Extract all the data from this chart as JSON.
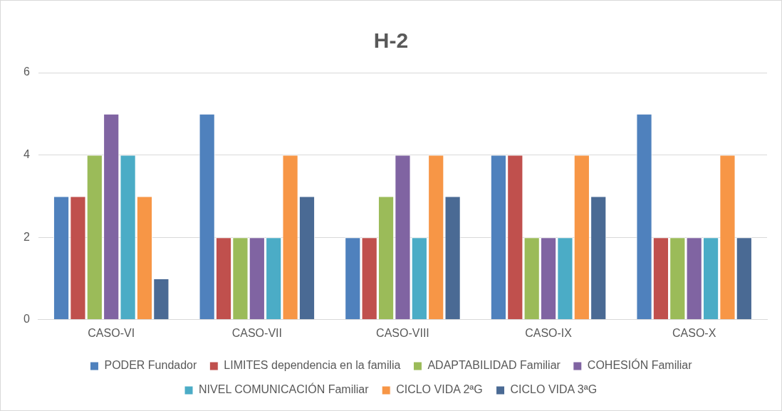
{
  "chart_data": {
    "type": "bar",
    "title": "H-2",
    "categories": [
      "CASO-VI",
      "CASO-VII",
      "CASO-VIII",
      "CASO-IX",
      "CASO-X"
    ],
    "series": [
      {
        "name": "PODER Fundador",
        "color": "#4f81bd",
        "values": [
          3,
          5,
          2,
          4,
          5
        ]
      },
      {
        "name": "LIMITES dependencia en la familia",
        "color": "#c0504d",
        "values": [
          3,
          2,
          2,
          4,
          2
        ]
      },
      {
        "name": "ADAPTABILIDAD Familiar",
        "color": "#9bbb59",
        "values": [
          4,
          2,
          3,
          2,
          2
        ]
      },
      {
        "name": "COHESIÓN Familiar",
        "color": "#8064a2",
        "values": [
          5,
          2,
          4,
          2,
          2
        ]
      },
      {
        "name": "NIVEL COMUNICACIÓN Familiar",
        "color": "#4bacc6",
        "values": [
          4,
          2,
          2,
          2,
          2
        ]
      },
      {
        "name": "CICLO VIDA 2ªG",
        "color": "#f79646",
        "values": [
          3,
          4,
          4,
          4,
          4
        ]
      },
      {
        "name": "CICLO VIDA 3ªG",
        "color": "#4a6a94",
        "values": [
          1,
          3,
          3,
          3,
          2
        ]
      }
    ],
    "ylim": [
      0,
      6
    ],
    "yticks": [
      0,
      2,
      4,
      6
    ],
    "grid": "y",
    "legend": "bottom"
  }
}
